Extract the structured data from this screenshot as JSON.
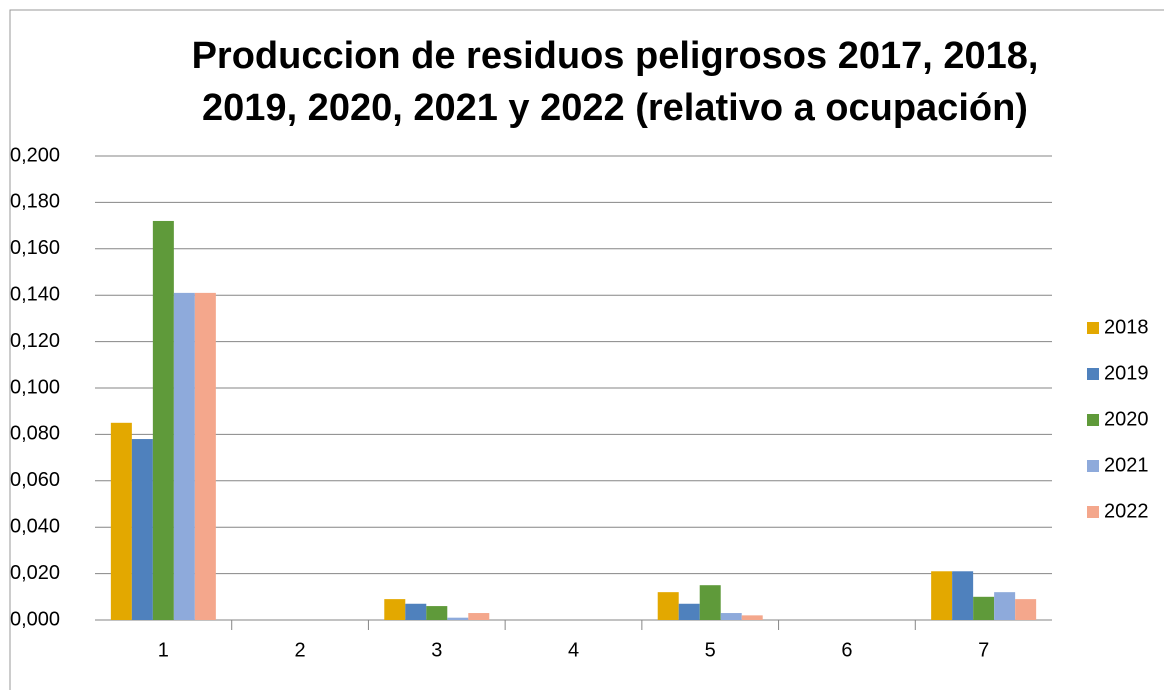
{
  "chart_data": {
    "type": "bar",
    "title": [
      "Produccion de residuos peligrosos  2017, 2018,",
      "2019, 2020, 2021 y 2022 (relativo a ocupación)"
    ],
    "categories": [
      "1",
      "2",
      "3",
      "4",
      "5",
      "6",
      "7"
    ],
    "series": [
      {
        "name": "2018",
        "color": "#e3a800",
        "values": [
          0.085,
          0,
          0.009,
          0,
          0.012,
          0,
          0.021
        ]
      },
      {
        "name": "2019",
        "color": "#4f81bd",
        "values": [
          0.078,
          0,
          0.007,
          0,
          0.007,
          0,
          0.021
        ]
      },
      {
        "name": "2020",
        "color": "#5f9a3a",
        "values": [
          0.172,
          0,
          0.006,
          0,
          0.015,
          0,
          0.01
        ]
      },
      {
        "name": "2021",
        "color": "#8eaadb",
        "values": [
          0.141,
          0,
          0.001,
          0,
          0.003,
          0,
          0.012
        ]
      },
      {
        "name": "2022",
        "color": "#f4a78c",
        "values": [
          0.141,
          0,
          0.003,
          0,
          0.002,
          0,
          0.009
        ]
      }
    ],
    "ylim": [
      0,
      0.2
    ],
    "yticks": [
      {
        "value": 0,
        "label": "0,000"
      },
      {
        "value": 0.02,
        "label": "0,020"
      },
      {
        "value": 0.04,
        "label": "0,040"
      },
      {
        "value": 0.06,
        "label": "0,060"
      },
      {
        "value": 0.08,
        "label": "0,080"
      },
      {
        "value": 0.1,
        "label": "0,100"
      },
      {
        "value": 0.12,
        "label": "0,120"
      },
      {
        "value": 0.14,
        "label": "0,140"
      },
      {
        "value": 0.16,
        "label": "0,160"
      },
      {
        "value": 0.18,
        "label": "0,180"
      },
      {
        "value": 0.2,
        "label": "0,200"
      }
    ],
    "grid": true,
    "legend": "right"
  }
}
